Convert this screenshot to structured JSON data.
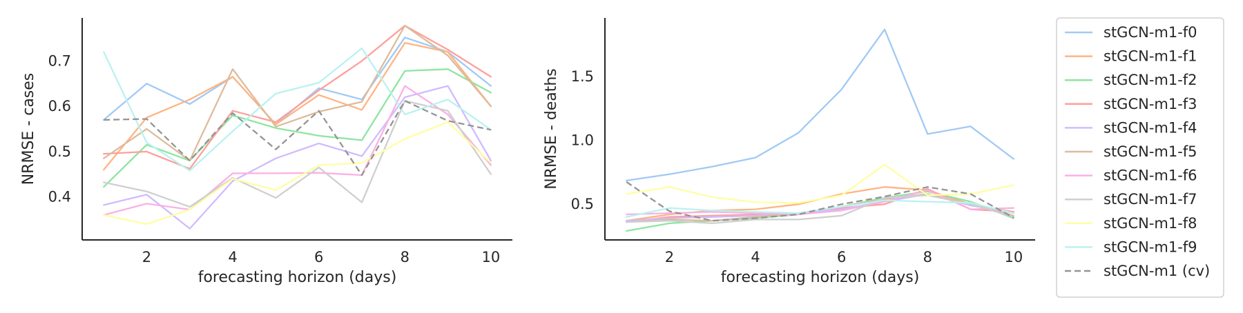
{
  "chart_data": [
    {
      "type": "line",
      "xlabel": "forecasting horizon (days)",
      "ylabel": "NRMSE - cases",
      "xlim": [
        0.5,
        10.5
      ],
      "ylim": [
        0.305,
        0.795
      ],
      "xticks": [
        2,
        4,
        6,
        8,
        10
      ],
      "xtick_labels": [
        "2",
        "4",
        "6",
        "8",
        "10"
      ],
      "yticks": [
        0.4,
        0.5,
        0.6,
        0.7
      ],
      "ytick_labels": [
        "0.4",
        "0.5",
        "0.6",
        "0.7"
      ],
      "x": [
        1,
        2,
        3,
        4,
        5,
        6,
        7,
        8,
        9,
        10
      ],
      "grid": false,
      "series": [
        {
          "name": "stGCN-m1-f0",
          "color": "#a1c9f4",
          "dashed": false,
          "values": [
            0.57,
            0.65,
            0.605,
            0.665,
            0.56,
            0.64,
            0.615,
            0.752,
            0.72,
            0.645
          ]
        },
        {
          "name": "stGCN-m1-f1",
          "color": "#ffb482",
          "dashed": false,
          "values": [
            0.46,
            0.575,
            0.615,
            0.665,
            0.56,
            0.625,
            0.592,
            0.74,
            0.72,
            0.6
          ]
        },
        {
          "name": "stGCN-m1-f2",
          "color": "#8de5a1",
          "dashed": false,
          "values": [
            0.422,
            0.515,
            0.48,
            0.58,
            0.552,
            0.535,
            0.525,
            0.678,
            0.682,
            0.63
          ]
        },
        {
          "name": "stGCN-m1-f3",
          "color": "#ff9f9b",
          "dashed": false,
          "values": [
            0.495,
            0.5,
            0.462,
            0.59,
            0.565,
            0.635,
            0.7,
            0.778,
            0.725,
            0.665
          ]
        },
        {
          "name": "stGCN-m1-f4",
          "color": "#d0bbff",
          "dashed": false,
          "values": [
            0.382,
            0.405,
            0.33,
            0.435,
            0.485,
            0.518,
            0.49,
            0.62,
            0.645,
            0.48
          ]
        },
        {
          "name": "stGCN-m1-f5",
          "color": "#debb9b",
          "dashed": false,
          "values": [
            0.485,
            0.55,
            0.48,
            0.682,
            0.555,
            0.588,
            0.61,
            0.778,
            0.712,
            0.6
          ]
        },
        {
          "name": "stGCN-m1-f6",
          "color": "#fab0e4",
          "dashed": false,
          "values": [
            0.36,
            0.385,
            0.372,
            0.452,
            0.452,
            0.453,
            0.448,
            0.645,
            0.582,
            0.47
          ]
        },
        {
          "name": "stGCN-m1-f7",
          "color": "#cfcfcf",
          "dashed": false,
          "values": [
            0.432,
            0.412,
            0.378,
            0.442,
            0.398,
            0.465,
            0.388,
            0.612,
            0.59,
            0.45
          ]
        },
        {
          "name": "stGCN-m1-f8",
          "color": "#fffea3",
          "dashed": false,
          "values": [
            0.36,
            0.34,
            0.372,
            0.44,
            0.415,
            0.47,
            0.475,
            0.528,
            0.565,
            0.475
          ]
        },
        {
          "name": "stGCN-m1-f9",
          "color": "#b9f2f0",
          "dashed": false,
          "values": [
            0.72,
            0.52,
            0.458,
            0.545,
            0.628,
            0.652,
            0.728,
            0.582,
            0.615,
            0.548
          ]
        },
        {
          "name": "stGCN-m1 (cv)",
          "color": "#949494",
          "dashed": true,
          "values": [
            0.57,
            0.572,
            0.48,
            0.585,
            0.505,
            0.59,
            0.448,
            0.612,
            0.568,
            0.548
          ]
        }
      ]
    },
    {
      "type": "line",
      "xlabel": "forecasting horizon (days)",
      "ylabel": "NRMSE - deaths",
      "xlim": [
        0.5,
        10.5
      ],
      "ylim": [
        0.22,
        1.96
      ],
      "xticks": [
        2,
        4,
        6,
        8,
        10
      ],
      "xtick_labels": [
        "2",
        "4",
        "6",
        "8",
        "10"
      ],
      "yticks": [
        0.5,
        1.0,
        1.5
      ],
      "ytick_labels": [
        "0.5",
        "1.0",
        "1.5"
      ],
      "x": [
        1,
        2,
        3,
        4,
        5,
        6,
        7,
        8,
        9,
        10
      ],
      "grid": false,
      "series": [
        {
          "name": "stGCN-m1-f0",
          "color": "#a1c9f4",
          "dashed": false,
          "values": [
            0.685,
            0.735,
            0.795,
            0.865,
            1.06,
            1.4,
            1.87,
            1.05,
            1.11,
            0.855
          ]
        },
        {
          "name": "stGCN-m1-f1",
          "color": "#ffb482",
          "dashed": false,
          "values": [
            0.37,
            0.42,
            0.45,
            0.46,
            0.5,
            0.58,
            0.635,
            0.61,
            0.5,
            0.44
          ]
        },
        {
          "name": "stGCN-m1-f2",
          "color": "#8de5a1",
          "dashed": false,
          "values": [
            0.29,
            0.35,
            0.37,
            0.39,
            0.42,
            0.48,
            0.55,
            0.6,
            0.52,
            0.39
          ]
        },
        {
          "name": "stGCN-m1-f3",
          "color": "#ff9f9b",
          "dashed": false,
          "values": [
            0.36,
            0.4,
            0.41,
            0.42,
            0.43,
            0.47,
            0.5,
            0.62,
            0.46,
            0.44
          ]
        },
        {
          "name": "stGCN-m1-f4",
          "color": "#d0bbff",
          "dashed": false,
          "values": [
            0.37,
            0.39,
            0.4,
            0.41,
            0.43,
            0.46,
            0.52,
            0.58,
            0.49,
            0.43
          ]
        },
        {
          "name": "stGCN-m1-f5",
          "color": "#debb9b",
          "dashed": false,
          "values": [
            0.36,
            0.38,
            0.37,
            0.4,
            0.43,
            0.48,
            0.54,
            0.58,
            0.5,
            0.41
          ]
        },
        {
          "name": "stGCN-m1-f6",
          "color": "#fab0e4",
          "dashed": false,
          "values": [
            0.42,
            0.43,
            0.44,
            0.43,
            0.42,
            0.45,
            0.52,
            0.61,
            0.46,
            0.47
          ]
        },
        {
          "name": "stGCN-m1-f7",
          "color": "#cfcfcf",
          "dashed": false,
          "values": [
            0.36,
            0.37,
            0.35,
            0.38,
            0.38,
            0.41,
            0.55,
            0.57,
            0.5,
            0.4
          ]
        },
        {
          "name": "stGCN-m1-f8",
          "color": "#fffea3",
          "dashed": false,
          "values": [
            0.58,
            0.635,
            0.555,
            0.515,
            0.51,
            0.57,
            0.81,
            0.57,
            0.58,
            0.65
          ]
        },
        {
          "name": "stGCN-m1-f9",
          "color": "#b9f2f0",
          "dashed": false,
          "values": [
            0.4,
            0.47,
            0.45,
            0.44,
            0.43,
            0.48,
            0.53,
            0.52,
            0.51,
            0.43
          ]
        },
        {
          "name": "stGCN-m1 (cv)",
          "color": "#949494",
          "dashed": true,
          "values": [
            0.675,
            0.445,
            0.37,
            0.39,
            0.42,
            0.5,
            0.56,
            0.635,
            0.58,
            0.395
          ]
        }
      ]
    }
  ],
  "legend": {
    "placement": "right, outside plots",
    "entries": [
      {
        "label": "stGCN-m1-f0",
        "color": "#a1c9f4",
        "dashed": false
      },
      {
        "label": "stGCN-m1-f1",
        "color": "#ffb482",
        "dashed": false
      },
      {
        "label": "stGCN-m1-f2",
        "color": "#8de5a1",
        "dashed": false
      },
      {
        "label": "stGCN-m1-f3",
        "color": "#ff9f9b",
        "dashed": false
      },
      {
        "label": "stGCN-m1-f4",
        "color": "#d0bbff",
        "dashed": false
      },
      {
        "label": "stGCN-m1-f5",
        "color": "#debb9b",
        "dashed": false
      },
      {
        "label": "stGCN-m1-f6",
        "color": "#fab0e4",
        "dashed": false
      },
      {
        "label": "stGCN-m1-f7",
        "color": "#cfcfcf",
        "dashed": false
      },
      {
        "label": "stGCN-m1-f8",
        "color": "#fffea3",
        "dashed": false
      },
      {
        "label": "stGCN-m1-f9",
        "color": "#b9f2f0",
        "dashed": false
      },
      {
        "label": "stGCN-m1 (cv)",
        "color": "#949494",
        "dashed": true
      }
    ]
  }
}
